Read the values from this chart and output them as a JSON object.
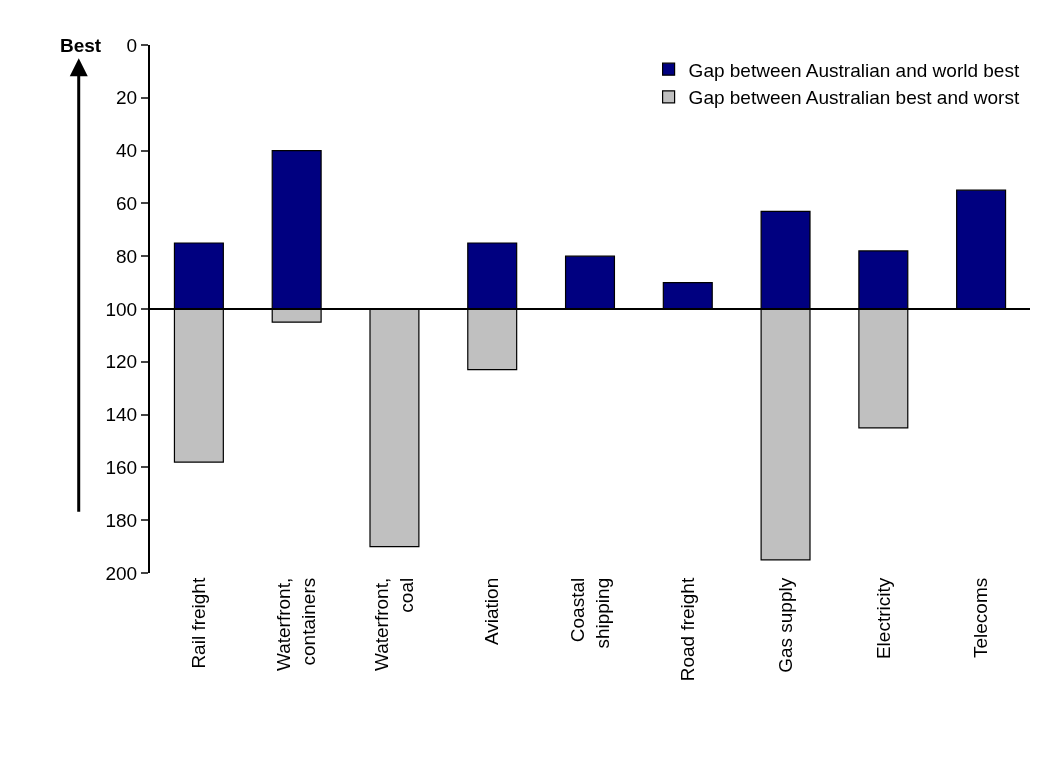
{
  "chart_data": {
    "type": "bar",
    "categories": [
      "Rail freight",
      "Waterfront, containers",
      "Waterfront, coal",
      "Aviation",
      "Coastal shipping",
      "Road freight",
      "Gas supply",
      "Electricity",
      "Telecoms"
    ],
    "series": [
      {
        "name": "Gap between Australian and world best",
        "color": "#000080",
        "base": [
          100,
          100,
          null,
          100,
          100,
          100,
          100,
          100,
          100
        ],
        "values": [
          -25,
          -60,
          null,
          -25,
          -20,
          -10,
          -37,
          -22,
          -45
        ]
      },
      {
        "name": "Gap between Australian best and worst",
        "color": "#c0c0c0",
        "base": [
          100,
          100,
          100,
          100,
          null,
          null,
          100,
          100,
          null
        ],
        "values": [
          58,
          5,
          90,
          23,
          null,
          null,
          95,
          45,
          null
        ]
      }
    ],
    "ylim": [
      200,
      0
    ],
    "yticks": [
      0,
      20,
      40,
      60,
      80,
      100,
      120,
      140,
      160,
      180,
      200
    ],
    "annotations": [
      "Best"
    ],
    "ref_lines": [
      {
        "axis": "y",
        "value": 100,
        "color": "#000000"
      }
    ],
    "legend": "top right",
    "grid": false
  }
}
